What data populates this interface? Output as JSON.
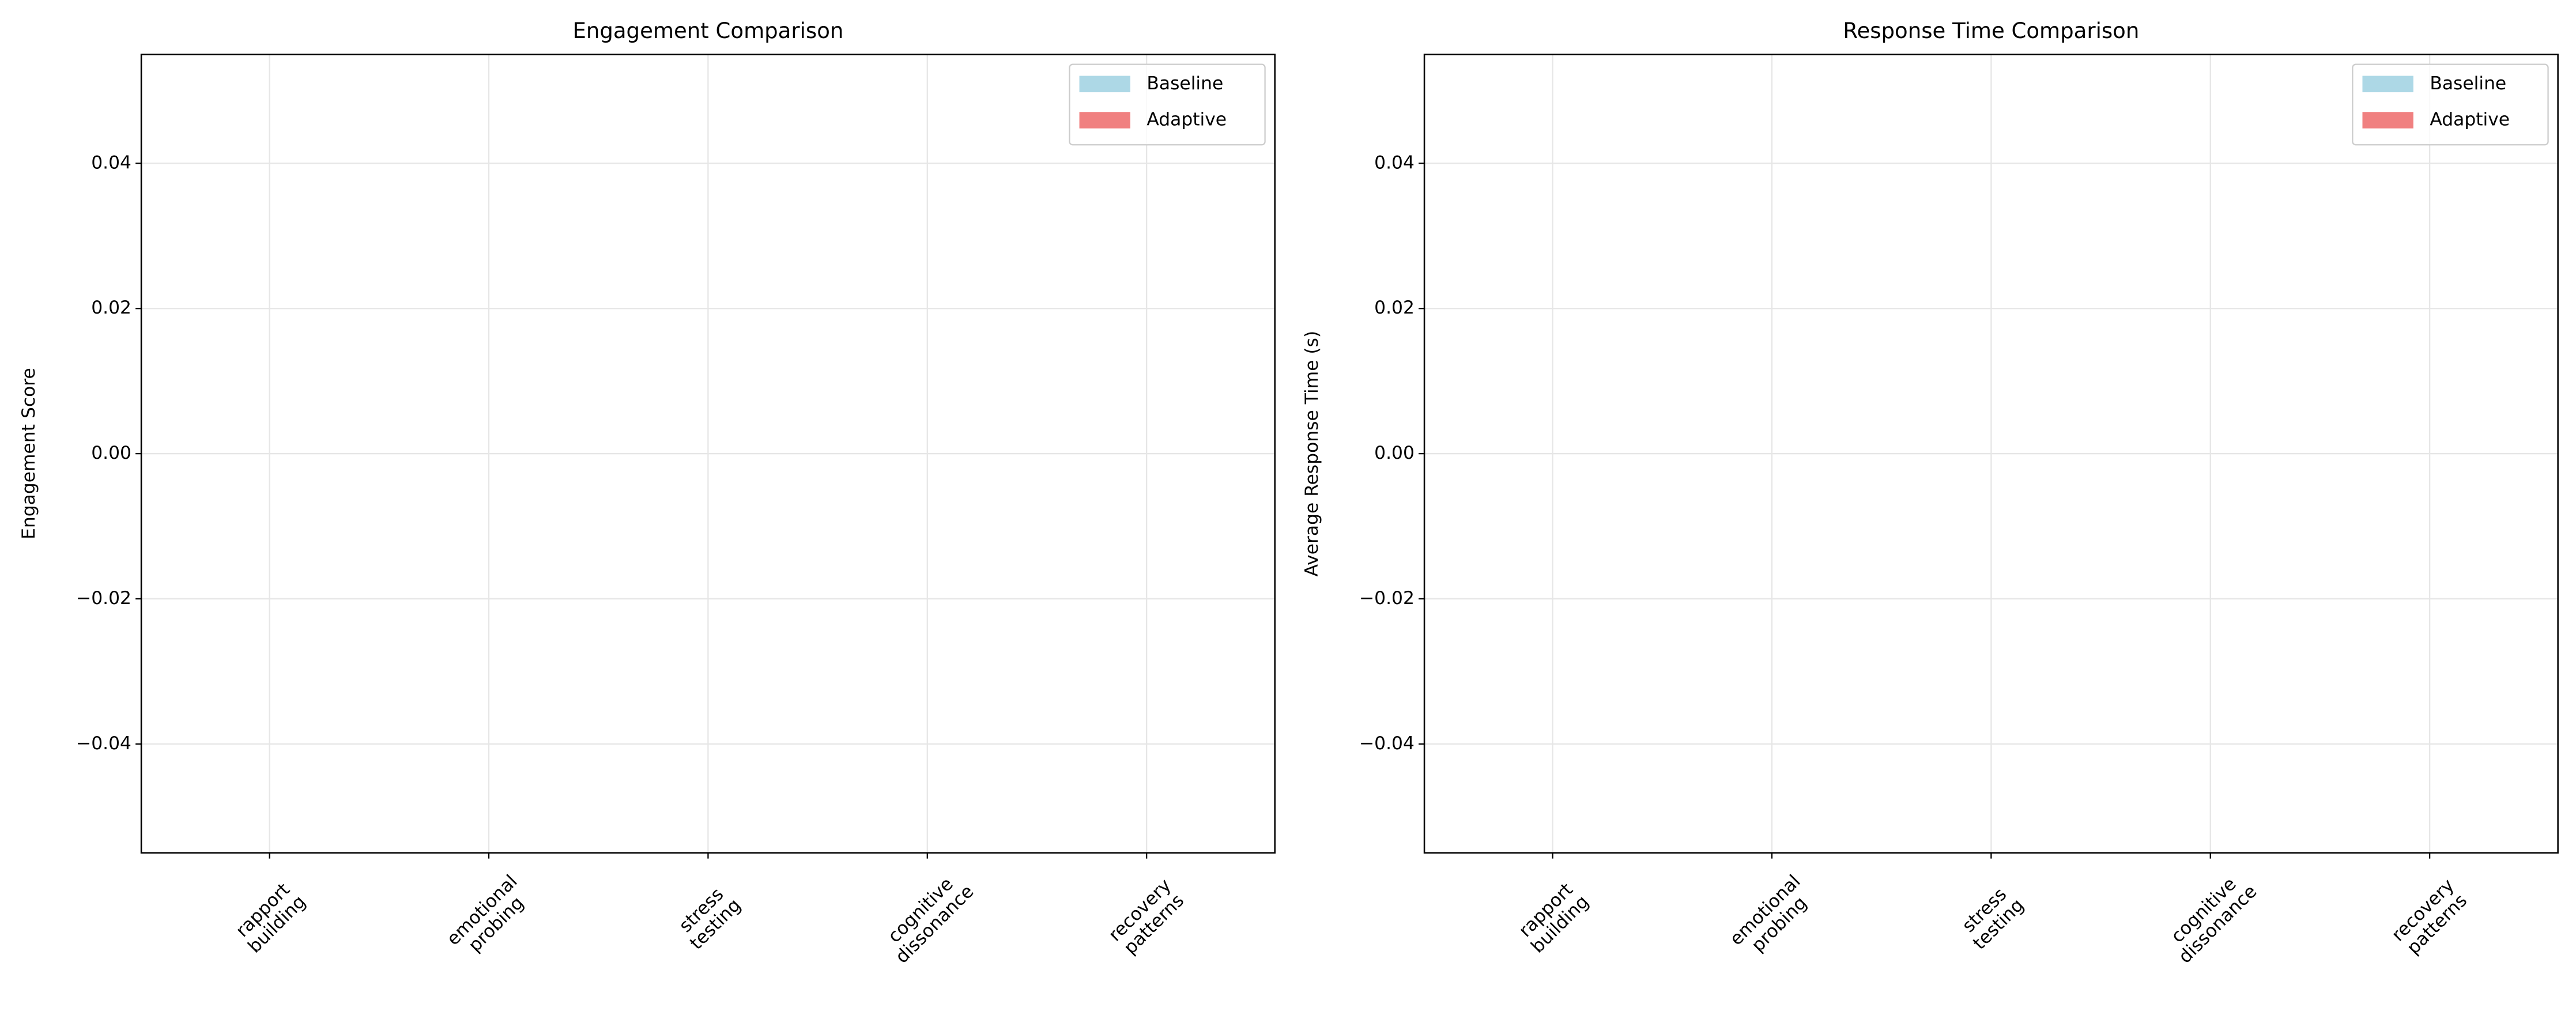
{
  "chart_data": [
    {
      "type": "bar",
      "title": "Engagement Comparison",
      "y_label": "Engagement Score",
      "categories": [
        [
          "rapport",
          "building"
        ],
        [
          "emotional",
          "probing"
        ],
        [
          "stress",
          "testing"
        ],
        [
          "cognitive",
          "dissonance"
        ],
        [
          "recovery",
          "patterns"
        ]
      ],
      "series": [
        {
          "name": "Baseline",
          "color": "#add8e6",
          "values": [
            0,
            0,
            0,
            0,
            0
          ]
        },
        {
          "name": "Adaptive",
          "color": "#f08080",
          "values": [
            0,
            0,
            0,
            0,
            0
          ]
        }
      ],
      "ylim": [
        -0.055,
        0.055
      ],
      "yticks": [
        {
          "value": -0.04,
          "label": "−0.04"
        },
        {
          "value": -0.02,
          "label": "−0.02"
        },
        {
          "value": 0,
          "label": "0.00"
        },
        0.02,
        0.04
      ],
      "grid": true,
      "legend": "upper right"
    },
    {
      "type": "bar",
      "title": "Response Time Comparison",
      "y_label": "Average Response Time (s)",
      "categories": [
        [
          "rapport",
          "building"
        ],
        [
          "emotional",
          "probing"
        ],
        [
          "stress",
          "testing"
        ],
        [
          "cognitive",
          "dissonance"
        ],
        [
          "recovery",
          "patterns"
        ]
      ],
      "series": [
        {
          "name": "Baseline",
          "color": "#add8e6",
          "values": [
            0,
            0,
            0,
            0,
            0
          ]
        },
        {
          "name": "Adaptive",
          "color": "#f08080",
          "values": [
            0,
            0,
            0,
            0,
            0
          ]
        }
      ],
      "ylim": [
        -0.055,
        0.055
      ],
      "yticks": [
        {
          "value": -0.04,
          "label": "−0.04"
        },
        {
          "value": -0.02,
          "label": "−0.02"
        },
        {
          "value": 0,
          "label": "0.00"
        },
        0.02,
        0.04
      ],
      "grid": true,
      "legend": "upper right"
    }
  ]
}
